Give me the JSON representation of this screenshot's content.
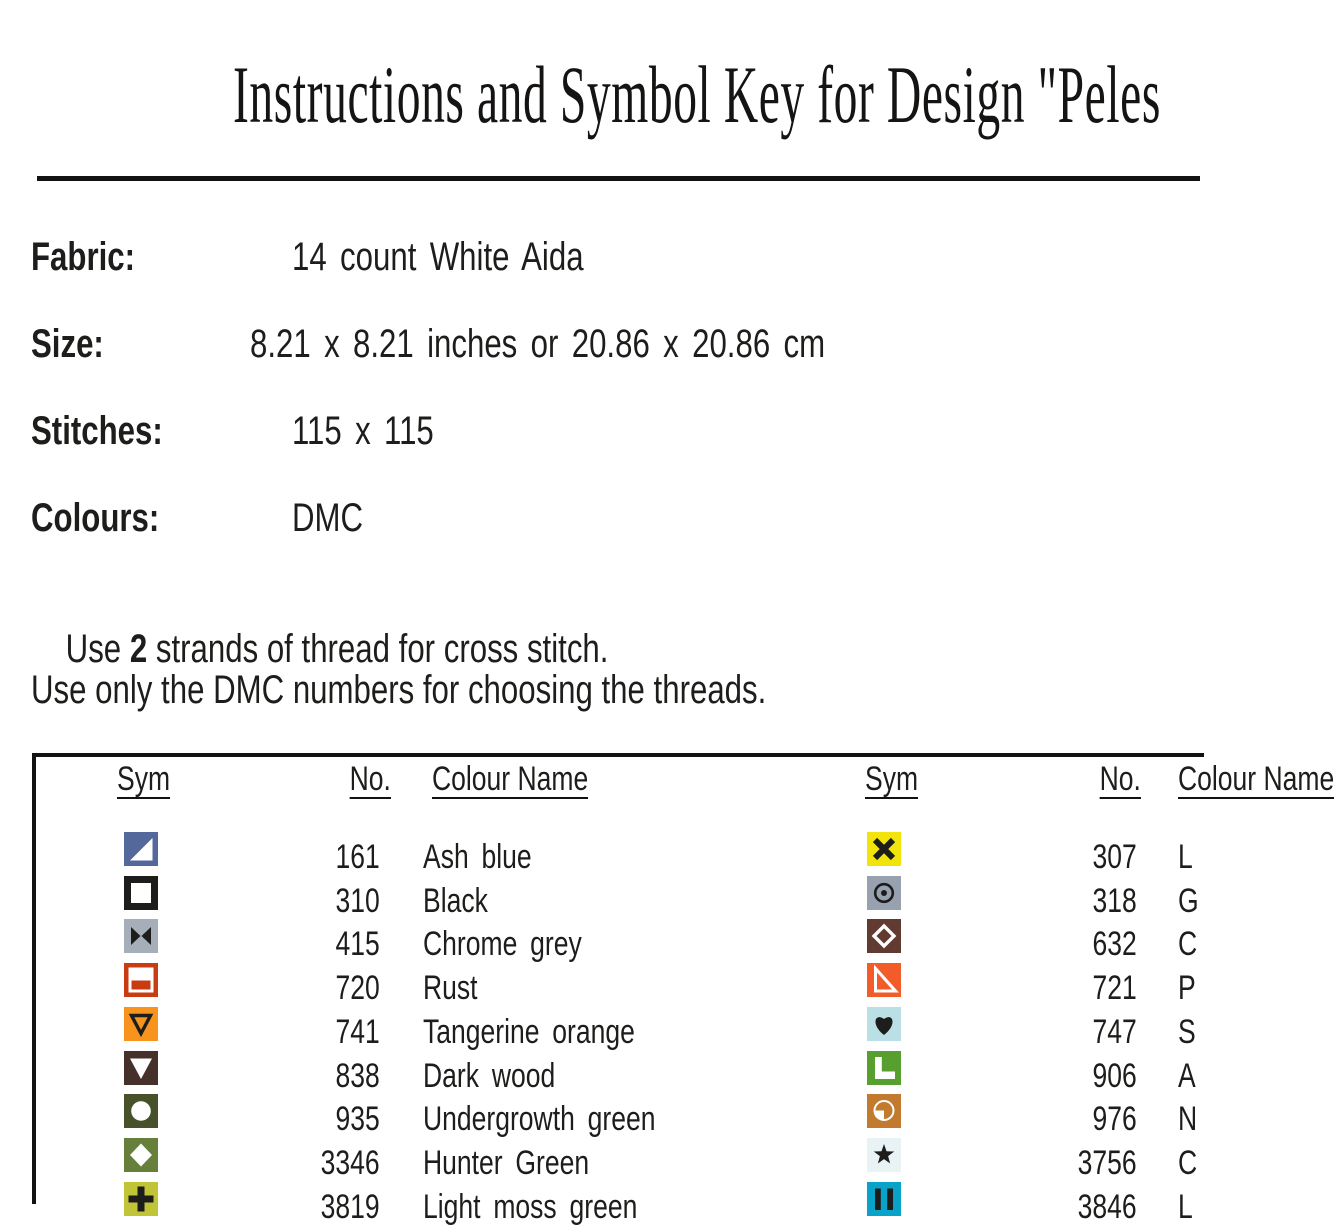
{
  "title": "Instructions and Symbol Key for Design \"Peles",
  "info": {
    "rows": [
      {
        "label": "Fabric:",
        "value": "14 count White Aida"
      },
      {
        "label": "Size:",
        "value": "8.21 x 8.21 inches or 20.86 x 20.86 cm"
      },
      {
        "label": "Stitches:",
        "value": "115 x 115"
      },
      {
        "label": "Colours:",
        "value": "DMC"
      }
    ]
  },
  "notes": {
    "strands_pre": "Use ",
    "strands_bold": "2",
    "strands_post": " strands of thread for cross stitch.",
    "dmc_note": "Use only the DMC numbers for choosing the threads."
  },
  "table": {
    "headers": {
      "sym": "Sym",
      "no": "No.",
      "name": "Colour Name"
    },
    "left_rows": [
      {
        "no": "161",
        "name": "Ash blue",
        "bg": "#55689b",
        "fg": "#ffffff",
        "glyph": "triangle-bottom-right"
      },
      {
        "no": "310",
        "name": "Black",
        "bg": "#1d1d1b",
        "fg": "#ffffff",
        "glyph": "hollow-square"
      },
      {
        "no": "415",
        "name": "Chrome grey",
        "bg": "#a6aeba",
        "fg": "#1d1d1b",
        "glyph": "bowtie"
      },
      {
        "no": "720",
        "name": "Rust",
        "bg": "#c93b11",
        "fg": "#ffffff",
        "glyph": "half-filled-rect"
      },
      {
        "no": "741",
        "name": "Tangerine orange",
        "bg": "#f7941e",
        "fg": "#1d1d1b",
        "glyph": "triangle-down-outline"
      },
      {
        "no": "838",
        "name": "Dark wood",
        "bg": "#46312a",
        "fg": "#ffffff",
        "glyph": "triangle-down"
      },
      {
        "no": "935",
        "name": "Undergrowth green",
        "bg": "#47522a",
        "fg": "#ffffff",
        "glyph": "circle"
      },
      {
        "no": "3346",
        "name": "Hunter Green",
        "bg": "#66803c",
        "fg": "#ffffff",
        "glyph": "diamond"
      },
      {
        "no": "3819",
        "name": "Light moss green",
        "bg": "#c2c438",
        "fg": "#1d1d1b",
        "glyph": "plus"
      }
    ],
    "right_rows": [
      {
        "no": "307",
        "name": "L",
        "bg": "#f2e30d",
        "fg": "#1d1d1b",
        "glyph": "x-cross"
      },
      {
        "no": "318",
        "name": "G",
        "bg": "#98a1b0",
        "fg": "#1d1d1b",
        "glyph": "circle-dot"
      },
      {
        "no": "632",
        "name": "C",
        "bg": "#613b31",
        "fg": "#ffffff",
        "glyph": "diamond-outline"
      },
      {
        "no": "721",
        "name": "P",
        "bg": "#f15c29",
        "fg": "#ffffff",
        "glyph": "triangle-bottom-left-outline"
      },
      {
        "no": "747",
        "name": "S",
        "bg": "#badfe4",
        "fg": "#1d1d1b",
        "glyph": "heart"
      },
      {
        "no": "906",
        "name": "A",
        "bg": "#57a030",
        "fg": "#ffffff",
        "glyph": "l-shape"
      },
      {
        "no": "976",
        "name": "N",
        "bg": "#c17a2e",
        "fg": "#ffffff",
        "glyph": "quarter-circle"
      },
      {
        "no": "3756",
        "name": "C",
        "bg": "#e9f2f5",
        "fg": "#1d1d1b",
        "glyph": "star"
      },
      {
        "no": "3846",
        "name": "L",
        "bg": "#09a3c9",
        "fg": "#1d1d1b",
        "glyph": "double-bars"
      }
    ]
  }
}
